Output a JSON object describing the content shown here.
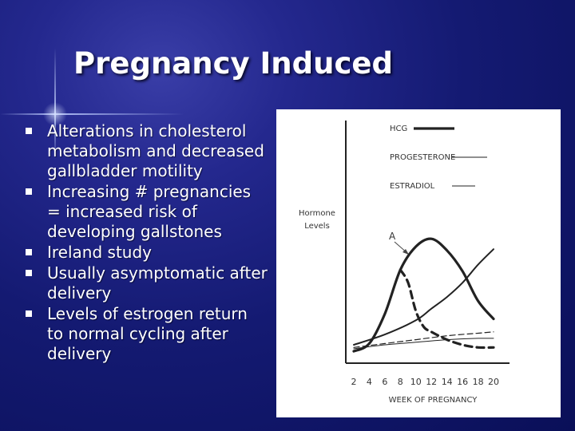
{
  "slide": {
    "title": "Pregnancy Induced",
    "bullets": [
      {
        "lines": [
          "Alterations in cholesterol",
          "metabolism and decreased",
          "gallbladder motility"
        ]
      },
      {
        "lines": [
          "Increasing # pregnancies",
          "= increased risk of",
          "developing gallstones"
        ]
      },
      {
        "lines": [
          "Ireland study"
        ]
      },
      {
        "lines": [
          "Usually asymptomatic after",
          "delivery"
        ]
      },
      {
        "lines": [
          "Levels of estrogen return",
          "to normal cycling after",
          "delivery"
        ]
      }
    ],
    "colors": {
      "background": "#141a72",
      "text": "#ffffff",
      "chart_background": "#ffffff",
      "ink": "#222222"
    }
  },
  "chart_data": {
    "type": "line",
    "ylabel": [
      "Hormone",
      "Levels"
    ],
    "xlabel": "WEEK OF PREGNANCY",
    "x_ticks": [
      2,
      4,
      6,
      8,
      10,
      12,
      14,
      16,
      18,
      20
    ],
    "xlim": [
      2,
      20
    ],
    "ylim": [
      0,
      10
    ],
    "annotation": "A",
    "legend": [
      {
        "name": "HCG",
        "style": "solid-thick"
      },
      {
        "name": "PROGESTERONE",
        "style": "thin"
      },
      {
        "name": "ESTRADIOL",
        "style": "thin"
      }
    ],
    "series": [
      {
        "id": "hcg-peak",
        "style": "solid-thick",
        "x": [
          2,
          4,
          6,
          8,
          10,
          12,
          14,
          16,
          18,
          20
        ],
        "y": [
          0.3,
          0.9,
          3.2,
          6.6,
          8.4,
          9.0,
          8.1,
          6.5,
          4.2,
          2.8
        ]
      },
      {
        "id": "hcg-dashed",
        "style": "dashed-thick",
        "x": [
          8,
          9,
          10,
          11,
          12,
          14,
          16,
          18,
          20
        ],
        "y": [
          6.6,
          5.6,
          3.4,
          2.2,
          1.8,
          1.2,
          0.8,
          0.6,
          0.6
        ]
      },
      {
        "id": "dashed-thin",
        "style": "dashed-thin",
        "x": [
          2,
          6,
          10,
          14,
          18,
          20
        ],
        "y": [
          0.6,
          0.9,
          1.2,
          1.5,
          1.7,
          1.8
        ]
      },
      {
        "id": "rising-curve",
        "style": "solid-medium",
        "x": [
          2,
          6,
          10,
          12,
          14,
          16,
          18,
          20
        ],
        "y": [
          0.8,
          1.6,
          2.7,
          3.6,
          4.5,
          5.6,
          7.0,
          8.2
        ]
      },
      {
        "id": "solid-thin",
        "style": "solid-thin",
        "x": [
          2,
          6,
          10,
          14,
          18,
          20
        ],
        "y": [
          0.5,
          0.8,
          1.0,
          1.2,
          1.3,
          1.3
        ]
      }
    ]
  }
}
